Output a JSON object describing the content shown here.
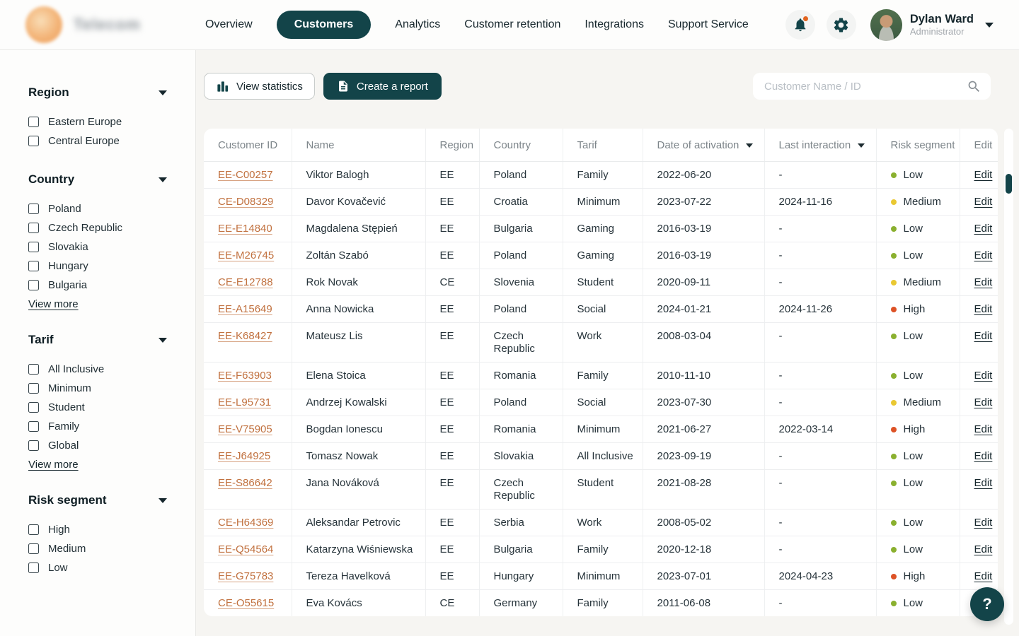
{
  "brand": {
    "name": "Telecom"
  },
  "nav": {
    "items": [
      {
        "label": "Overview",
        "active": false
      },
      {
        "label": "Customers",
        "active": true
      },
      {
        "label": "Analytics",
        "active": false
      },
      {
        "label": "Customer retention",
        "active": false
      },
      {
        "label": "Integrations",
        "active": false
      },
      {
        "label": "Support Service",
        "active": false
      }
    ]
  },
  "user": {
    "name": "Dylan Ward",
    "role": "Administrator"
  },
  "sidebar": {
    "sections": [
      {
        "title": "Region",
        "items": [
          "Eastern Europe",
          "Central Europe"
        ],
        "view_more": null
      },
      {
        "title": "Country",
        "items": [
          "Poland",
          "Czech Republic",
          "Slovakia",
          "Hungary",
          "Bulgaria"
        ],
        "view_more": "View more"
      },
      {
        "title": "Tarif",
        "items": [
          "All Inclusive",
          "Minimum",
          "Student",
          "Family",
          "Global"
        ],
        "view_more": "View more"
      },
      {
        "title": "Risk segment",
        "items": [
          "High",
          "Medium",
          "Low"
        ],
        "view_more": null
      }
    ]
  },
  "toolbar": {
    "view_statistics_label": "View statistics",
    "create_report_label": "Create a report"
  },
  "search": {
    "placeholder": "Customer Name / ID"
  },
  "table": {
    "edit_label": "Edit",
    "columns": [
      {
        "label": "Customer ID",
        "sortable": false
      },
      {
        "label": "Name",
        "sortable": false
      },
      {
        "label": "Region",
        "sortable": false
      },
      {
        "label": "Country",
        "sortable": false
      },
      {
        "label": "Tarif",
        "sortable": false
      },
      {
        "label": "Date of activation",
        "sortable": true
      },
      {
        "label": "Last interaction",
        "sortable": true
      },
      {
        "label": "Risk segment",
        "sortable": false
      },
      {
        "label": "Edit",
        "sortable": false
      }
    ],
    "rows": [
      {
        "id": "EE-C00257",
        "name": "Viktor Balogh",
        "region": "EE",
        "country": "Poland",
        "tarif": "Family",
        "activation": "2022-06-20",
        "last_interaction": "-",
        "risk": "Low"
      },
      {
        "id": "CE-D08329",
        "name": "Davor Kovačević",
        "region": "EE",
        "country": "Croatia",
        "tarif": "Minimum",
        "activation": "2023-07-22",
        "last_interaction": "2024-11-16",
        "risk": "Medium"
      },
      {
        "id": "EE-E14840",
        "name": "Magdalena Stępień",
        "region": "EE",
        "country": "Bulgaria",
        "tarif": "Gaming",
        "activation": "2016-03-19",
        "last_interaction": "-",
        "risk": "Low"
      },
      {
        "id": "EE-M26745",
        "name": "Zoltán Szabó",
        "region": "EE",
        "country": "Poland",
        "tarif": "Gaming",
        "activation": "2016-03-19",
        "last_interaction": "-",
        "risk": "Low"
      },
      {
        "id": "CE-E12788",
        "name": "Rok Novak",
        "region": "CE",
        "country": "Slovenia",
        "tarif": "Student",
        "activation": "2020-09-11",
        "last_interaction": "-",
        "risk": "Medium"
      },
      {
        "id": "EE-A15649",
        "name": "Anna Nowicka",
        "region": "EE",
        "country": "Poland",
        "tarif": "Social",
        "activation": "2024-01-21",
        "last_interaction": "2024-11-26",
        "risk": "High"
      },
      {
        "id": "EE-K68427",
        "name": "Mateusz Lis",
        "region": "EE",
        "country": "Czech Republic",
        "tarif": "Work",
        "activation": "2008-03-04",
        "last_interaction": "-",
        "risk": "Low"
      },
      {
        "id": "EE-F63903",
        "name": "Elena Stoica",
        "region": "EE",
        "country": "Romania",
        "tarif": "Family",
        "activation": "2010-11-10",
        "last_interaction": "-",
        "risk": "Low"
      },
      {
        "id": "EE-L95731",
        "name": "Andrzej Kowalski",
        "region": "EE",
        "country": "Poland",
        "tarif": "Social",
        "activation": "2023-07-30",
        "last_interaction": "-",
        "risk": "Medium"
      },
      {
        "id": "EE-V75905",
        "name": "Bogdan Ionescu",
        "region": "EE",
        "country": "Romania",
        "tarif": "Minimum",
        "activation": "2021-06-27",
        "last_interaction": "2022-03-14",
        "risk": "High"
      },
      {
        "id": "EE-J64925",
        "name": "Tomasz Nowak",
        "region": "EE",
        "country": "Slovakia",
        "tarif": "All Inclusive",
        "activation": "2023-09-19",
        "last_interaction": "-",
        "risk": "Low"
      },
      {
        "id": "EE-S86642",
        "name": "Jana Nováková",
        "region": "EE",
        "country": "Czech Republic",
        "tarif": "Student",
        "activation": "2021-08-28",
        "last_interaction": "-",
        "risk": "Low"
      },
      {
        "id": "CE-H64369",
        "name": "Aleksandar Petrovic",
        "region": "EE",
        "country": "Serbia",
        "tarif": "Work",
        "activation": "2008-05-02",
        "last_interaction": "-",
        "risk": "Low"
      },
      {
        "id": "EE-Q54564",
        "name": "Katarzyna Wiśniewska",
        "region": "EE",
        "country": "Bulgaria",
        "tarif": "Family",
        "activation": "2020-12-18",
        "last_interaction": "-",
        "risk": "Low"
      },
      {
        "id": "EE-G75783",
        "name": "Tereza Havelková",
        "region": "EE",
        "country": "Hungary",
        "tarif": "Minimum",
        "activation": "2023-07-01",
        "last_interaction": "2024-04-23",
        "risk": "High"
      },
      {
        "id": "CE-O55615",
        "name": "Eva Kovács",
        "region": "CE",
        "country": "Germany",
        "tarif": "Family",
        "activation": "2011-06-08",
        "last_interaction": "-",
        "risk": "Low"
      }
    ]
  },
  "colors": {
    "accent": "#134449",
    "id_link": "#c1713f",
    "notification_dot": "#e2641f",
    "risk": {
      "Low": "#8ab02f",
      "Medium": "#e9c832",
      "High": "#dd5226"
    }
  },
  "help": {
    "label": "?"
  }
}
